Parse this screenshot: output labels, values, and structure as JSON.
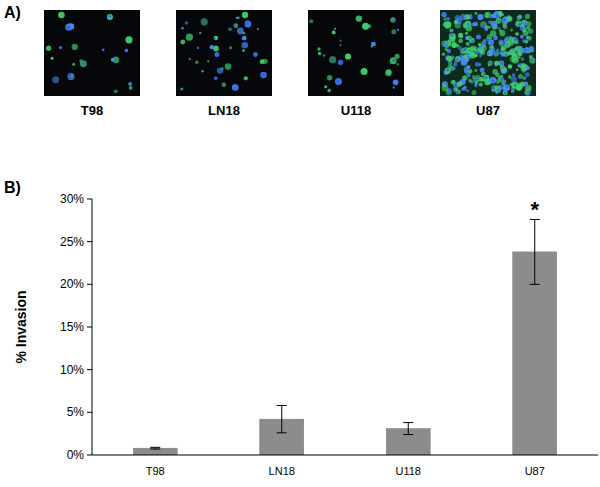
{
  "figure": {
    "panel_labels": [
      "A)",
      "B)"
    ],
    "image_labels": [
      "T98",
      "LN18",
      "U118",
      "U87"
    ]
  },
  "chart_data": {
    "type": "bar",
    "categories": [
      "T98",
      "LN18",
      "U118",
      "U87"
    ],
    "values": [
      0.8,
      4.2,
      3.1,
      23.8
    ],
    "errors": [
      0.1,
      1.6,
      0.7,
      3.8
    ],
    "color": "#8c8c8c",
    "y_label": "% Invasion",
    "ylim": [
      0,
      30
    ],
    "yticks": [
      {
        "value": 0,
        "label": "0%"
      },
      {
        "value": 5,
        "label": "5%"
      },
      {
        "value": 10,
        "label": "10%"
      },
      {
        "value": 15,
        "label": "15%"
      },
      {
        "value": 20,
        "label": "20%"
      },
      {
        "value": 25,
        "label": "25%"
      },
      {
        "value": 30,
        "label": "30%"
      }
    ],
    "annotations": [
      {
        "text": "*",
        "category": "U87"
      }
    ],
    "grid": false
  }
}
